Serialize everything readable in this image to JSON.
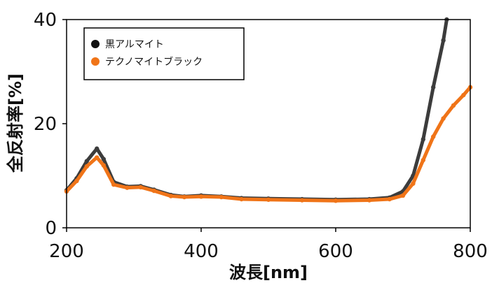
{
  "chart_data": {
    "type": "scatter",
    "xlabel": "波長[nm]",
    "ylabel": "全反射率[%]",
    "xlim": [
      200,
      800
    ],
    "ylim": [
      0,
      40
    ],
    "x_ticks": [
      "200",
      "400",
      "600",
      "800"
    ],
    "y_ticks": [
      "0",
      "20",
      "40"
    ],
    "legend_position": "top-left",
    "series": [
      {
        "name": "黒アルマイト",
        "color": "#3c3c3c",
        "points": [
          [
            200,
            7.2
          ],
          [
            215,
            9.5
          ],
          [
            230,
            12.8
          ],
          [
            245,
            15.2
          ],
          [
            255,
            13.2
          ],
          [
            270,
            8.8
          ],
          [
            290,
            7.9
          ],
          [
            310,
            8.0
          ],
          [
            330,
            7.3
          ],
          [
            355,
            6.3
          ],
          [
            375,
            6.0
          ],
          [
            400,
            6.2
          ],
          [
            430,
            6.0
          ],
          [
            460,
            5.7
          ],
          [
            500,
            5.6
          ],
          [
            550,
            5.5
          ],
          [
            600,
            5.4
          ],
          [
            650,
            5.5
          ],
          [
            680,
            5.8
          ],
          [
            700,
            7.0
          ],
          [
            715,
            10.0
          ],
          [
            730,
            17.0
          ],
          [
            745,
            27.0
          ],
          [
            760,
            36.0
          ],
          [
            765,
            40.0
          ]
        ]
      },
      {
        "name": "テクノマイトブラック",
        "color": "#f07418",
        "points": [
          [
            200,
            7.0
          ],
          [
            215,
            9.0
          ],
          [
            230,
            11.8
          ],
          [
            245,
            13.5
          ],
          [
            255,
            12.0
          ],
          [
            270,
            8.3
          ],
          [
            290,
            7.7
          ],
          [
            310,
            7.8
          ],
          [
            330,
            7.1
          ],
          [
            355,
            6.1
          ],
          [
            375,
            5.9
          ],
          [
            400,
            6.0
          ],
          [
            430,
            5.9
          ],
          [
            460,
            5.5
          ],
          [
            500,
            5.4
          ],
          [
            550,
            5.3
          ],
          [
            600,
            5.2
          ],
          [
            650,
            5.3
          ],
          [
            680,
            5.5
          ],
          [
            700,
            6.2
          ],
          [
            715,
            8.5
          ],
          [
            730,
            13.0
          ],
          [
            745,
            17.5
          ],
          [
            760,
            21.0
          ],
          [
            775,
            23.5
          ],
          [
            790,
            25.5
          ],
          [
            800,
            27.0
          ]
        ]
      }
    ]
  }
}
